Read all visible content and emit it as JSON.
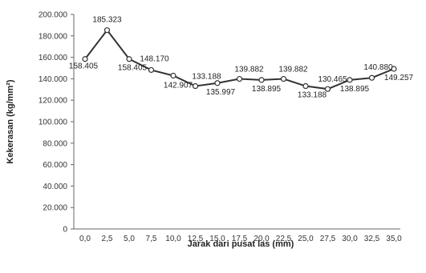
{
  "chart_data": {
    "type": "line",
    "title": "",
    "xlabel": "Jarak dari pusat las (mm)",
    "ylabel": "Kekerasan (kg/mm²)",
    "ylim": [
      0,
      200
    ],
    "yticks": [
      "0",
      "20.000",
      "40.000",
      "60.000",
      "80.000",
      "100.000",
      "120.000",
      "140.000",
      "160.000",
      "180.000",
      "200.000"
    ],
    "grid": false,
    "legend": "none",
    "categories": [
      "0,0",
      "2,5",
      "5,0",
      "7,5",
      "10,0",
      "12,5",
      "15,0",
      "17,5",
      "20,0",
      "22,5",
      "25,0",
      "27,5",
      "30,0",
      "32,5",
      "35,0"
    ],
    "series": [
      {
        "values": [
          158.405,
          185.323,
          158.405,
          148.17,
          142.907,
          133.188,
          135.997,
          139.882,
          138.895,
          139.882,
          133.188,
          130.465,
          138.895,
          140.88,
          149.257
        ],
        "labels": [
          "158.405",
          "185.323",
          "158.405",
          "148.170",
          "142.907",
          "133.188",
          "135.997",
          "139.882",
          "138.895",
          "139.882",
          "133.188",
          "130.465",
          "138.895",
          "140.880",
          "149.257"
        ],
        "color": "#333333"
      }
    ]
  }
}
